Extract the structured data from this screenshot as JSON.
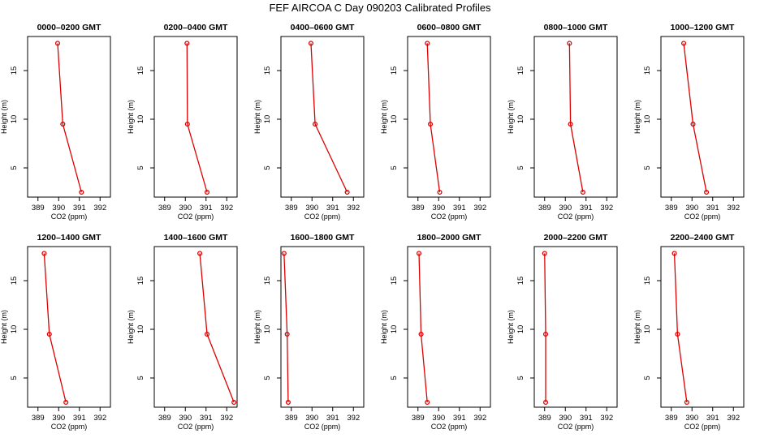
{
  "title": "FEF AIRCOA C  Day 090203  Calibrated Profiles",
  "chart_data": [
    {
      "type": "line",
      "title": "0000–0200 GMT",
      "xlabel": "CO2 (ppm)",
      "ylabel": "Height (m)",
      "xlim": [
        388.5,
        392.5
      ],
      "ylim": [
        2,
        18.5
      ],
      "xticks": [
        389,
        390,
        391,
        392
      ],
      "yticks": [
        5,
        10,
        15
      ],
      "heights": [
        2.5,
        9.5,
        17.8
      ],
      "values": [
        391.1,
        390.2,
        389.95
      ]
    },
    {
      "type": "line",
      "title": "0200–0400 GMT",
      "xlabel": "CO2 (ppm)",
      "ylabel": "Height (m)",
      "xlim": [
        388.5,
        392.5
      ],
      "ylim": [
        2,
        18.5
      ],
      "xticks": [
        389,
        390,
        391,
        392
      ],
      "yticks": [
        5,
        10,
        15
      ],
      "heights": [
        2.5,
        9.5,
        17.8
      ],
      "values": [
        391.05,
        390.1,
        390.08
      ]
    },
    {
      "type": "line",
      "title": "0400–0600 GMT",
      "xlabel": "CO2 (ppm)",
      "ylabel": "Height (m)",
      "xlim": [
        388.5,
        392.5
      ],
      "ylim": [
        2,
        18.5
      ],
      "xticks": [
        389,
        390,
        391,
        392
      ],
      "yticks": [
        5,
        10,
        15
      ],
      "heights": [
        2.5,
        9.5,
        17.8
      ],
      "values": [
        391.7,
        390.15,
        389.95
      ]
    },
    {
      "type": "line",
      "title": "0600–0800 GMT",
      "xlabel": "CO2 (ppm)",
      "ylabel": "Height (m)",
      "xlim": [
        388.5,
        392.5
      ],
      "ylim": [
        2,
        18.5
      ],
      "xticks": [
        389,
        390,
        391,
        392
      ],
      "yticks": [
        5,
        10,
        15
      ],
      "heights": [
        2.5,
        9.5,
        17.8
      ],
      "values": [
        390.05,
        389.6,
        389.45
      ]
    },
    {
      "type": "line",
      "title": "0800–1000 GMT",
      "xlabel": "CO2 (ppm)",
      "ylabel": "Height (m)",
      "xlim": [
        388.5,
        392.5
      ],
      "ylim": [
        2,
        18.5
      ],
      "xticks": [
        389,
        390,
        391,
        392
      ],
      "yticks": [
        5,
        10,
        15
      ],
      "heights": [
        2.5,
        9.5,
        17.8
      ],
      "values": [
        390.85,
        390.25,
        390.2
      ]
    },
    {
      "type": "line",
      "title": "1000–1200 GMT",
      "xlabel": "CO2 (ppm)",
      "ylabel": "Height (m)",
      "xlim": [
        388.5,
        392.5
      ],
      "ylim": [
        2,
        18.5
      ],
      "xticks": [
        389,
        390,
        391,
        392
      ],
      "yticks": [
        5,
        10,
        15
      ],
      "heights": [
        2.5,
        9.5,
        17.8
      ],
      "values": [
        390.7,
        390.05,
        389.6
      ]
    },
    {
      "type": "line",
      "title": "1200–1400 GMT",
      "xlabel": "CO2 (ppm)",
      "ylabel": "Height (m)",
      "xlim": [
        388.5,
        392.5
      ],
      "ylim": [
        2,
        18.5
      ],
      "xticks": [
        389,
        390,
        391,
        392
      ],
      "yticks": [
        5,
        10,
        15
      ],
      "heights": [
        2.5,
        9.5,
        17.8
      ],
      "values": [
        390.35,
        389.55,
        389.3
      ]
    },
    {
      "type": "line",
      "title": "1400–1600 GMT",
      "xlabel": "CO2 (ppm)",
      "ylabel": "Height (m)",
      "xlim": [
        388.5,
        392.5
      ],
      "ylim": [
        2,
        18.5
      ],
      "xticks": [
        389,
        390,
        391,
        392
      ],
      "yticks": [
        5,
        10,
        15
      ],
      "heights": [
        2.5,
        9.5,
        17.8
      ],
      "values": [
        392.35,
        391.05,
        390.7
      ]
    },
    {
      "type": "line",
      "title": "1600–1800 GMT",
      "xlabel": "CO2 (ppm)",
      "ylabel": "Height (m)",
      "xlim": [
        388.5,
        392.5
      ],
      "ylim": [
        2,
        18.5
      ],
      "xticks": [
        389,
        390,
        391,
        392
      ],
      "yticks": [
        5,
        10,
        15
      ],
      "heights": [
        2.5,
        9.5,
        17.8
      ],
      "values": [
        388.85,
        388.8,
        388.65
      ]
    },
    {
      "type": "line",
      "title": "1800–2000 GMT",
      "xlabel": "CO2 (ppm)",
      "ylabel": "Height (m)",
      "xlim": [
        388.5,
        392.5
      ],
      "ylim": [
        2,
        18.5
      ],
      "xticks": [
        389,
        390,
        391,
        392
      ],
      "yticks": [
        5,
        10,
        15
      ],
      "heights": [
        2.5,
        9.5,
        17.8
      ],
      "values": [
        389.45,
        389.15,
        389.05
      ]
    },
    {
      "type": "line",
      "title": "2000–2200 GMT",
      "xlabel": "CO2 (ppm)",
      "ylabel": "Height (m)",
      "xlim": [
        388.5,
        392.5
      ],
      "ylim": [
        2,
        18.5
      ],
      "xticks": [
        389,
        390,
        391,
        392
      ],
      "yticks": [
        5,
        10,
        15
      ],
      "heights": [
        2.5,
        9.5,
        17.8
      ],
      "values": [
        389.05,
        389.05,
        389.0
      ]
    },
    {
      "type": "line",
      "title": "2200–2400 GMT",
      "xlabel": "CO2 (ppm)",
      "ylabel": "Height (m)",
      "xlim": [
        388.5,
        392.5
      ],
      "ylim": [
        2,
        18.5
      ],
      "xticks": [
        389,
        390,
        391,
        392
      ],
      "yticks": [
        5,
        10,
        15
      ],
      "heights": [
        2.5,
        9.5,
        17.8
      ],
      "values": [
        389.75,
        389.3,
        389.15
      ]
    }
  ],
  "colors": {
    "series": "#dd0000",
    "axes": "#000000",
    "background": "#ffffff"
  }
}
